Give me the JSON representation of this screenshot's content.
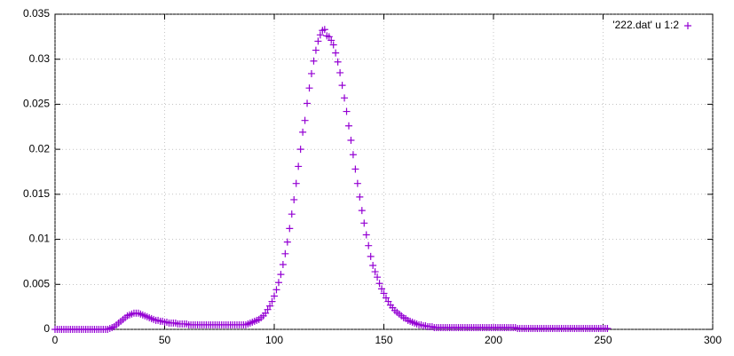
{
  "chart_data": {
    "type": "scatter",
    "xlim": [
      0,
      300
    ],
    "ylim": [
      0,
      0.035
    ],
    "xticks": [
      0,
      50,
      100,
      150,
      200,
      250,
      300
    ],
    "yticks": [
      0,
      0.005,
      0.01,
      0.015,
      0.02,
      0.025,
      0.03,
      0.035
    ],
    "grid": true,
    "legend": "top-right",
    "series": [
      {
        "name": "'222.dat' u 1:2",
        "color": "#9400d3",
        "x": [
          0,
          1,
          2,
          3,
          4,
          5,
          6,
          7,
          8,
          9,
          10,
          11,
          12,
          13,
          14,
          15,
          16,
          17,
          18,
          19,
          20,
          21,
          22,
          23,
          24,
          25,
          26,
          27,
          28,
          29,
          30,
          31,
          32,
          33,
          34,
          35,
          36,
          37,
          38,
          39,
          40,
          41,
          42,
          43,
          44,
          45,
          46,
          47,
          48,
          49,
          50,
          51,
          52,
          53,
          54,
          55,
          56,
          57,
          58,
          59,
          60,
          61,
          62,
          63,
          64,
          65,
          66,
          67,
          68,
          69,
          70,
          71,
          72,
          73,
          74,
          75,
          76,
          77,
          78,
          79,
          80,
          81,
          82,
          83,
          84,
          85,
          86,
          87,
          88,
          89,
          90,
          91,
          92,
          93,
          94,
          95,
          96,
          97,
          98,
          99,
          100,
          101,
          102,
          103,
          104,
          105,
          106,
          107,
          108,
          109,
          110,
          111,
          112,
          113,
          114,
          115,
          116,
          117,
          118,
          119,
          120,
          121,
          122,
          123,
          124,
          125,
          126,
          127,
          128,
          129,
          130,
          131,
          132,
          133,
          134,
          135,
          136,
          137,
          138,
          139,
          140,
          141,
          142,
          143,
          144,
          145,
          146,
          147,
          148,
          149,
          150,
          151,
          152,
          153,
          154,
          155,
          156,
          157,
          158,
          159,
          160,
          161,
          162,
          163,
          164,
          165,
          166,
          167,
          168,
          169,
          170,
          171,
          172,
          173,
          174,
          175,
          176,
          177,
          178,
          179,
          180,
          181,
          182,
          183,
          184,
          185,
          186,
          187,
          188,
          189,
          190,
          191,
          192,
          193,
          194,
          195,
          196,
          197,
          198,
          199,
          200,
          201,
          202,
          203,
          204,
          205,
          206,
          207,
          208,
          209,
          210,
          211,
          212,
          213,
          214,
          215,
          216,
          217,
          218,
          219,
          220,
          221,
          222,
          223,
          224,
          225,
          226,
          227,
          228,
          229,
          230,
          231,
          232,
          233,
          234,
          235,
          236,
          237,
          238,
          239,
          240,
          241,
          242,
          243,
          244,
          245,
          246,
          247,
          248,
          249,
          250,
          251,
          252
        ],
        "values": [
          0,
          0,
          0,
          0,
          0,
          0,
          0,
          0,
          0,
          0,
          0,
          0,
          0,
          0,
          0,
          0,
          0,
          0,
          0,
          0,
          0,
          0,
          0,
          0,
          0,
          0.0001,
          0.0002,
          0.0003,
          0.0005,
          0.0007,
          0.0009,
          0.0011,
          0.0013,
          0.0015,
          0.0016,
          0.0017,
          0.0018,
          0.0018,
          0.0018,
          0.0017,
          0.0016,
          0.0015,
          0.0014,
          0.0013,
          0.0012,
          0.0011,
          0.001,
          0.001,
          0.0009,
          0.0009,
          0.0008,
          0.0008,
          0.0007,
          0.0007,
          0.0007,
          0.0007,
          0.0006,
          0.0006,
          0.0006,
          0.0006,
          0.0006,
          0.0005,
          0.0005,
          0.0005,
          0.0005,
          0.0005,
          0.0005,
          0.0005,
          0.0005,
          0.0005,
          0.0005,
          0.0005,
          0.0005,
          0.0005,
          0.0005,
          0.0005,
          0.0005,
          0.0005,
          0.0005,
          0.0005,
          0.0005,
          0.0005,
          0.0005,
          0.0005,
          0.0005,
          0.0005,
          0.0005,
          0.0005,
          0.0006,
          0.0007,
          0.0008,
          0.0009,
          0.001,
          0.0011,
          0.0013,
          0.0015,
          0.0018,
          0.0022,
          0.0026,
          0.0031,
          0.0037,
          0.0044,
          0.0052,
          0.0061,
          0.0072,
          0.0084,
          0.0097,
          0.0112,
          0.0128,
          0.0144,
          0.0162,
          0.0181,
          0.02,
          0.0219,
          0.0232,
          0.0251,
          0.0268,
          0.0284,
          0.0298,
          0.031,
          0.032,
          0.0327,
          0.0332,
          0.0333,
          0.0326,
          0.0325,
          0.0321,
          0.0316,
          0.0307,
          0.0297,
          0.0285,
          0.0271,
          0.0257,
          0.0242,
          0.0226,
          0.021,
          0.0194,
          0.0178,
          0.0162,
          0.0147,
          0.0132,
          0.0118,
          0.0105,
          0.0093,
          0.0081,
          0.0071,
          0.0064,
          0.0058,
          0.0051,
          0.0045,
          0.004,
          0.0035,
          0.0031,
          0.0027,
          0.0024,
          0.0021,
          0.0019,
          0.0017,
          0.0015,
          0.0013,
          0.0012,
          0.001,
          0.0009,
          0.0008,
          0.0007,
          0.0006,
          0.0005,
          0.0005,
          0.0004,
          0.0004,
          0.0003,
          0.0003,
          0.0003,
          0.0002,
          0.0002,
          0.0002,
          0.0002,
          0.0002,
          0.0002,
          0.0002,
          0.0002,
          0.0002,
          0.0002,
          0.0002,
          0.0002,
          0.0002,
          0.0002,
          0.0002,
          0.0002,
          0.0002,
          0.0002,
          0.0002,
          0.0002,
          0.0002,
          0.0002,
          0.0002,
          0.0002,
          0.0002,
          0.0002,
          0.0002,
          0.0002,
          0.0002,
          0.0002,
          0.0002,
          0.0002,
          0.0002,
          0.0002,
          0.0002,
          0.0002,
          0.0002,
          0.0002,
          0.0001,
          0.0001,
          0.0001,
          0.0001,
          0.0001,
          0.0001,
          0.0001,
          0.0001,
          0.0001,
          0.0001,
          0.0001,
          0.0001,
          0.0001,
          0.0001,
          0.0001,
          0.0001,
          0.0001,
          0.0001,
          0.0001,
          0.0001,
          0.0001,
          0.0001,
          0.0001,
          0.0001,
          0.0001,
          0.0001,
          0.0001,
          0.0001,
          0.0001,
          0.0001,
          0.0001,
          0.0001,
          0.0001,
          0.0001,
          0.0001,
          0.0001,
          0.0001,
          0.0001,
          0.0001,
          0.0001,
          0.0001,
          0.0001
        ]
      }
    ]
  }
}
